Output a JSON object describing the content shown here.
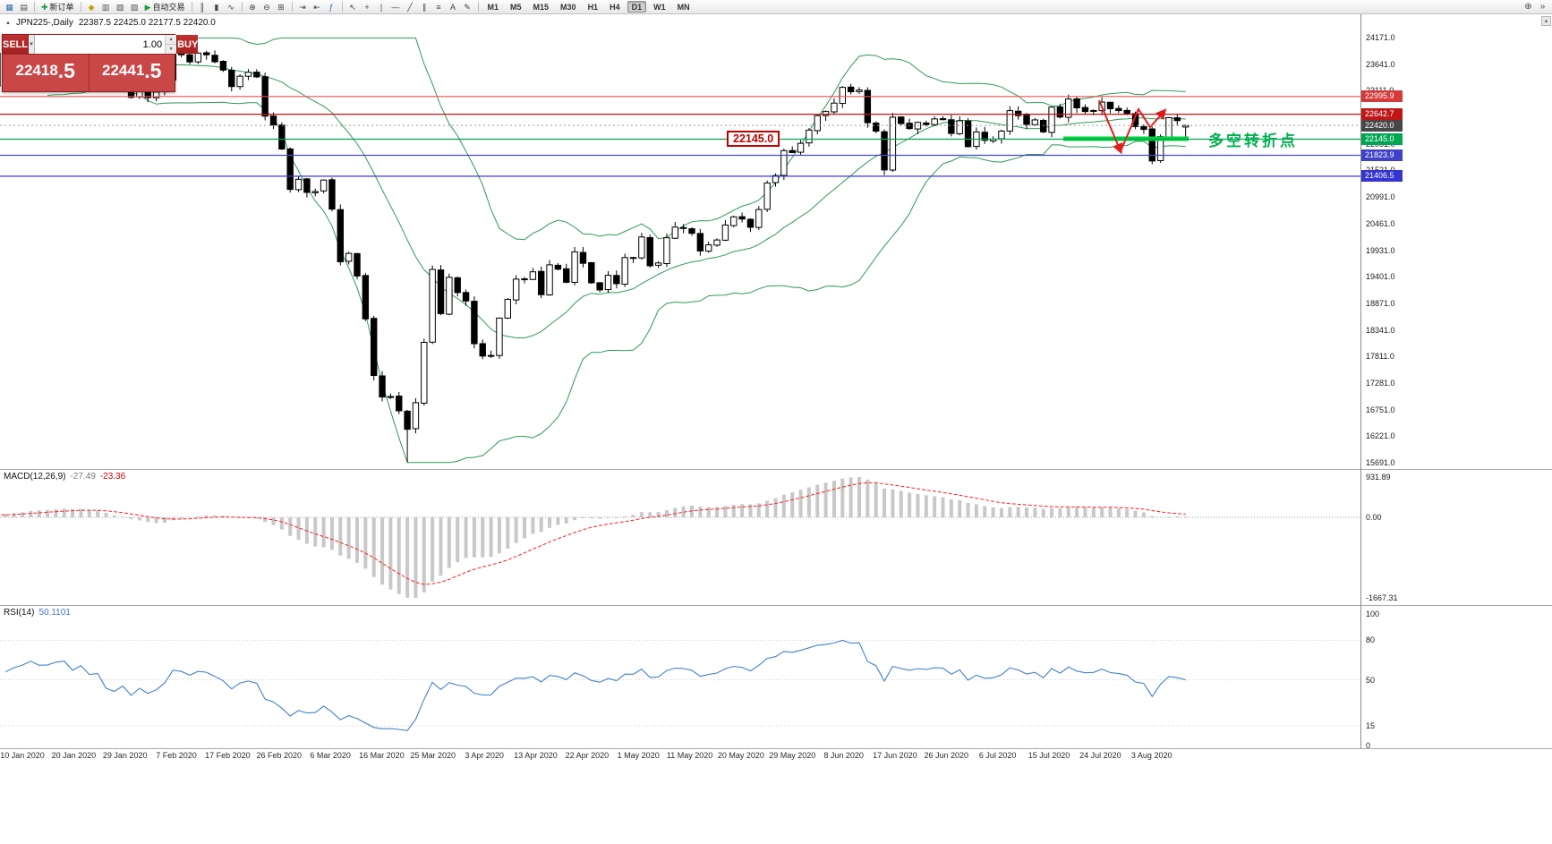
{
  "app": {
    "title_symbol": "JPN225-,Daily",
    "title_ohlc": "22387.5 22425.0 22177.5 22420.0",
    "marker_icon": "▲",
    "scrollbar_up_icon": "▲"
  },
  "toolbar": {
    "items": [
      {
        "type": "icon",
        "name": "new-chart",
        "glyph": "▦",
        "color": "#2b6cb0"
      },
      {
        "type": "icon",
        "name": "profiles",
        "glyph": "▤",
        "color": "#555555"
      },
      {
        "type": "sep"
      },
      {
        "type": "icon",
        "name": "new-order",
        "glyph": "✚",
        "color": "#1a9c3e",
        "label": "新订单"
      },
      {
        "type": "sep"
      },
      {
        "type": "icon",
        "name": "metaquotes",
        "glyph": "◆",
        "color": "#c8a200"
      },
      {
        "type": "icon",
        "name": "market-watch",
        "glyph": "▥",
        "color": "#555555"
      },
      {
        "type": "icon",
        "name": "data-window",
        "glyph": "▧",
        "color": "#555555"
      },
      {
        "type": "icon",
        "name": "navigator",
        "glyph": "▨",
        "color": "#555555"
      },
      {
        "type": "icon",
        "name": "autotrading",
        "glyph": "▶",
        "color": "#1a9c3e",
        "label": "自动交易"
      },
      {
        "type": "sep"
      },
      {
        "type": "icon",
        "name": "bar-chart",
        "glyph": "║",
        "color": "#444444"
      },
      {
        "type": "icon",
        "name": "candlestick-chart",
        "glyph": "▮",
        "color": "#444444"
      },
      {
        "type": "icon",
        "name": "line-chart",
        "glyph": "∿",
        "color": "#444444"
      },
      {
        "type": "sep"
      },
      {
        "type": "icon",
        "name": "zoom-in",
        "glyph": "⊕",
        "color": "#444444"
      },
      {
        "type": "icon",
        "name": "zoom-out",
        "glyph": "⊖",
        "color": "#444444"
      },
      {
        "type": "icon",
        "name": "tile-windows",
        "glyph": "⊞",
        "color": "#444444"
      },
      {
        "type": "sep"
      },
      {
        "type": "icon",
        "name": "auto-scroll",
        "glyph": "⇥",
        "color": "#444444"
      },
      {
        "type": "icon",
        "name": "chart-shift",
        "glyph": "⇤",
        "color": "#444444"
      },
      {
        "type": "icon",
        "name": "indicators",
        "glyph": "ƒ",
        "color": "#2b6cb0"
      },
      {
        "type": "sep"
      },
      {
        "type": "icon",
        "name": "cursor",
        "glyph": "↖",
        "color": "#444444"
      },
      {
        "type": "icon",
        "name": "crosshair",
        "glyph": "+",
        "color": "#444444"
      },
      {
        "type": "icon",
        "name": "vertical-line",
        "glyph": "|",
        "color": "#444444"
      },
      {
        "type": "icon",
        "name": "horizontal-line",
        "glyph": "—",
        "color": "#444444"
      },
      {
        "type": "icon",
        "name": "trendline",
        "glyph": "╱",
        "color": "#444444"
      },
      {
        "type": "icon",
        "name": "channel",
        "glyph": "∥",
        "color": "#444444"
      },
      {
        "type": "icon",
        "name": "fibonacci",
        "glyph": "≡",
        "color": "#444444"
      },
      {
        "type": "icon",
        "name": "text",
        "glyph": "A",
        "color": "#444444"
      },
      {
        "type": "icon",
        "name": "arrows",
        "glyph": "✎",
        "color": "#444444"
      },
      {
        "type": "sep"
      }
    ],
    "timeframes": [
      "M1",
      "M5",
      "M15",
      "M30",
      "H1",
      "H4",
      "D1",
      "W1",
      "MN"
    ],
    "active_timeframe": "D1",
    "right_items": [
      {
        "name": "toolbar-zoom",
        "glyph": "⊕"
      },
      {
        "name": "toolbar-overflow",
        "glyph": "»"
      }
    ]
  },
  "order_panel": {
    "sell_label": "SELL",
    "buy_label": "BUY",
    "volume": "1.00",
    "dropdown_icon": "▼",
    "spin_up_icon": "▲",
    "spin_down_icon": "▼",
    "sell_price": {
      "main": "22418",
      "frac": ".5"
    },
    "buy_price": {
      "main": "22441",
      "frac": ".5"
    }
  },
  "price_axis": {
    "labels": [
      "24171.0",
      "23641.0",
      "23111.0",
      "22581.0",
      "22051.0",
      "21521.0",
      "20991.0",
      "20461.0",
      "19931.0",
      "19401.0",
      "18871.0",
      "18341.0",
      "17811.0",
      "17281.0",
      "16751.0",
      "16221.0",
      "15691.0"
    ],
    "badges": [
      {
        "text": "22995.9",
        "color": "#d43a3a"
      },
      {
        "text": "22642.7",
        "color": "#c01616"
      },
      {
        "text": "22420.0",
        "color": "#474747"
      },
      {
        "text": "22145.0",
        "color": "#00a651"
      },
      {
        "text": "21823.9",
        "color": "#4040c8"
      },
      {
        "text": "21406.5",
        "color": "#3434d0"
      }
    ]
  },
  "hlines": [
    {
      "value": 22995.9,
      "color": "#f05050"
    },
    {
      "value": 22642.7,
      "color": "#cc1111"
    },
    {
      "value": 22145.0,
      "color": "#00a651"
    },
    {
      "value": 21823.9,
      "color": "#4848cc"
    },
    {
      "value": 21406.5,
      "color": "#3838d8"
    }
  ],
  "current_price": {
    "value": 22420.0,
    "line_color": "#9a9a9a"
  },
  "annotations": {
    "price_callout": {
      "text": "22145.0",
      "color": "#c00000"
    },
    "support_bar": {
      "color": "#00d23c"
    },
    "zigzag_color": "#e02020",
    "turning_point": {
      "text": "多空转折点",
      "color": "#00b050"
    }
  },
  "indicator_labels": {
    "macd_name": "MACD(12,26,9)",
    "macd_main": "-27.49",
    "macd_signal": "-23.36",
    "macd_axis": [
      "931.89",
      "0.00",
      "-1667.31"
    ],
    "rsi_name": "RSI(14)",
    "rsi_value": "50.1101",
    "rsi_axis": [
      "100",
      "80",
      "50",
      "15",
      "0"
    ]
  },
  "date_axis": [
    "10 Jan 2020",
    "20 Jan 2020",
    "29 Jan 2020",
    "7 Feb 2020",
    "17 Feb 2020",
    "26 Feb 2020",
    "6 Mar 2020",
    "16 Mar 2020",
    "25 Mar 2020",
    "3 Apr 2020",
    "13 Apr 2020",
    "22 Apr 2020",
    "1 May 2020",
    "11 May 2020",
    "20 May 2020",
    "29 May 2020",
    "8 Jun 2020",
    "17 Jun 2020",
    "26 Jun 2020",
    "6 Jul 2020",
    "15 Jul 2020",
    "24 Jul 2020",
    "3 Aug 2020"
  ],
  "chart_data": {
    "type": "candlestick",
    "symbol": "JPN225-",
    "timeframe": "Daily",
    "ylim": [
      15691.0,
      24171.0
    ],
    "last_ohlc": {
      "open": 22387.5,
      "high": 22425.0,
      "low": 22177.5,
      "close": 22420.0
    },
    "first_tick_candle_index": 16,
    "closes": [
      23290,
      23390,
      23430,
      23520,
      23350,
      23140,
      23200,
      23310,
      23410,
      23520,
      23660,
      23790,
      23850,
      23200,
      23575,
      23740,
      23850,
      24025,
      23917,
      23933,
      24041,
      24084,
      23865,
      24032,
      23795,
      23827,
      23344,
      23216,
      23379,
      22978,
      23205,
      22972,
      23085,
      23320,
      23874,
      23828,
      23686,
      23861,
      23828,
      23688,
      23523,
      23194,
      23401,
      23479,
      23387,
      22605,
      22426,
      21948,
      21143,
      21344,
      21083,
      21100,
      21329,
      20750,
      19699,
      19867,
      19416,
      18560,
      17431,
      17002,
      17011,
      16727,
      16358,
      16888,
      18092,
      19547,
      18665,
      19389,
      19085,
      18917,
      18065,
      17819,
      17820,
      18576,
      18950,
      19353,
      19346,
      19499,
      19043,
      19638,
      19551,
      19290,
      19897,
      19669,
      19280,
      19138,
      19429,
      19262,
      19783,
      19771,
      20194,
      19619,
      19675,
      20179,
      20391,
      20366,
      20267,
      19915,
      20037,
      20134,
      20433,
      20595,
      20552,
      20388,
      20741,
      21271,
      21419,
      21916,
      21878,
      22062,
      22326,
      22614,
      22696,
      22864,
      23178,
      23091,
      23125,
      22473,
      22305,
      21531,
      22582,
      22456,
      22355,
      22479,
      22437,
      22549,
      22534,
      22260,
      22512,
      21995,
      22288,
      22122,
      22146,
      22306,
      22714,
      22615,
      22439,
      22529,
      22291,
      22784,
      22587,
      22946,
      22770,
      22696,
      22717,
      22884,
      22752,
      22715,
      22657,
      22397,
      22339,
      21710,
      22195,
      22573,
      22515,
      22420
    ],
    "indicators": [
      {
        "type": "bollinger",
        "period": 20,
        "deviation": 2,
        "color": "#2e9b57"
      },
      {
        "type": "macd",
        "fast": 12,
        "slow": 26,
        "signal": 9,
        "histogram_color": "#c8c8c8",
        "signal_color": "#ff2020"
      },
      {
        "type": "rsi",
        "period": 14,
        "color": "#4080d0",
        "levels": [
          80,
          50,
          15
        ]
      }
    ]
  }
}
